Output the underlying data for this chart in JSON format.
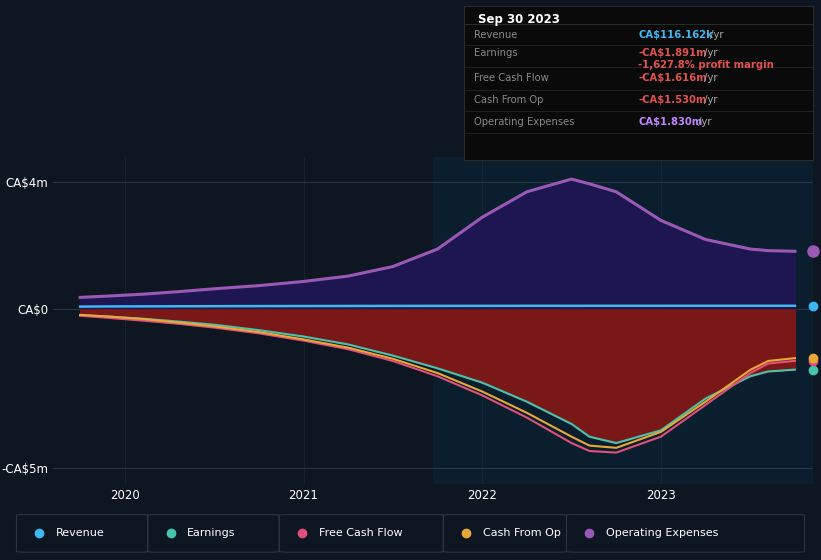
{
  "bg_color": "#0e1621",
  "chart_bg_left": "#0e1621",
  "chart_bg_right": "#0e2030",
  "title": "Sep 30 2023",
  "ylim": [
    -5500000,
    4800000
  ],
  "yticks": [
    -5000000,
    0,
    4000000
  ],
  "ytick_labels": [
    "-CA$5m",
    "CA$0",
    "CA$4m"
  ],
  "xlim": [
    2019.6,
    2023.85
  ],
  "xticks": [
    2020,
    2021,
    2022,
    2023
  ],
  "xtick_labels": [
    "2020",
    "2021",
    "2022",
    "2023"
  ],
  "legend": [
    {
      "label": "Revenue",
      "color": "#3eb8f0"
    },
    {
      "label": "Earnings",
      "color": "#45c4b0"
    },
    {
      "label": "Free Cash Flow",
      "color": "#e0507a"
    },
    {
      "label": "Cash From Op",
      "color": "#e8a838"
    },
    {
      "label": "Operating Expenses",
      "color": "#9b59b6"
    }
  ],
  "x": [
    2019.75,
    2019.9,
    2020.1,
    2020.3,
    2020.5,
    2020.75,
    2021.0,
    2021.25,
    2021.5,
    2021.75,
    2022.0,
    2022.25,
    2022.5,
    2022.6,
    2022.75,
    2023.0,
    2023.25,
    2023.5,
    2023.6,
    2023.75
  ],
  "revenue": [
    90000,
    95000,
    98000,
    100000,
    103000,
    106000,
    108000,
    110000,
    112000,
    113000,
    114000,
    115000,
    115500,
    115700,
    116000,
    116000,
    116100,
    116162,
    116162,
    116162
  ],
  "earnings": [
    -180000,
    -220000,
    -290000,
    -380000,
    -480000,
    -650000,
    -850000,
    -1100000,
    -1450000,
    -1850000,
    -2300000,
    -2900000,
    -3600000,
    -4000000,
    -4200000,
    -3800000,
    -2800000,
    -2100000,
    -1950000,
    -1891000
  ],
  "free_cash_flow": [
    -200000,
    -260000,
    -350000,
    -450000,
    -570000,
    -750000,
    -980000,
    -1250000,
    -1620000,
    -2100000,
    -2700000,
    -3400000,
    -4200000,
    -4450000,
    -4500000,
    -4000000,
    -3000000,
    -2000000,
    -1700000,
    -1616000
  ],
  "cash_from_op": [
    -170000,
    -220000,
    -300000,
    -410000,
    -530000,
    -710000,
    -940000,
    -1200000,
    -1550000,
    -2000000,
    -2580000,
    -3250000,
    -4000000,
    -4280000,
    -4350000,
    -3850000,
    -2900000,
    -1900000,
    -1620000,
    -1530000
  ],
  "operating_exp": [
    380000,
    420000,
    480000,
    560000,
    650000,
    750000,
    880000,
    1050000,
    1350000,
    1900000,
    2900000,
    3700000,
    4100000,
    3950000,
    3700000,
    2800000,
    2200000,
    1900000,
    1850000,
    1830000
  ],
  "fill_above_color": "#1e1650",
  "fill_below_color": "#7a1a1a",
  "op_line_color": "#9b59b6",
  "revenue_line_color": "#3eb8f0",
  "earnings_line_color": "#45c4b0",
  "fcf_line_color": "#e0507a",
  "cashop_line_color": "#e8a838",
  "info_box": {
    "title": "Sep 30 2023",
    "rows": [
      {
        "label": "Revenue",
        "value": "CA$116.162k",
        "value_color": "#3eb8f0"
      },
      {
        "label": "Earnings",
        "value": "-CA$1.891m",
        "value_color": "#e05252"
      },
      {
        "label": "",
        "value": "-1,627.8% profit margin",
        "value_color": "#e05252"
      },
      {
        "label": "Free Cash Flow",
        "value": "-CA$1.616m",
        "value_color": "#e05252"
      },
      {
        "label": "Cash From Op",
        "value": "-CA$1.530m",
        "value_color": "#e05252"
      },
      {
        "label": "Operating Expenses",
        "value": "CA$1.830m",
        "value_color": "#c084fc"
      }
    ]
  }
}
